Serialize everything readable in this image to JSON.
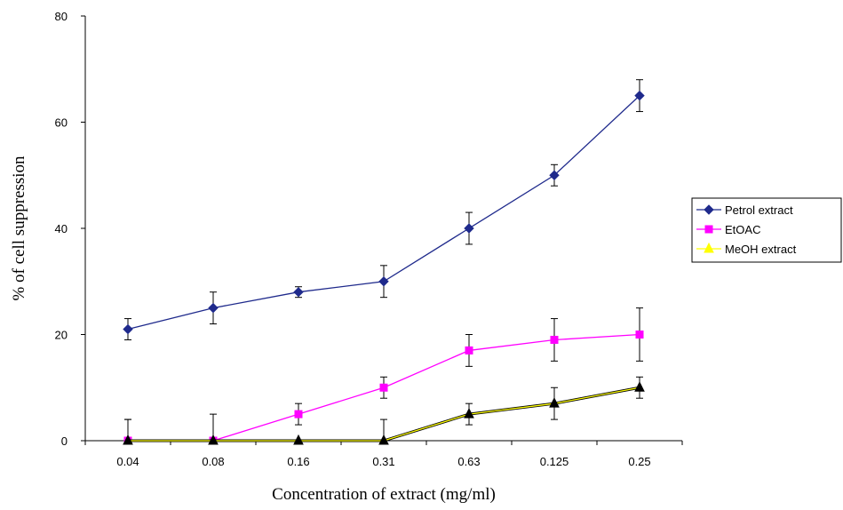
{
  "chart_data": {
    "type": "line",
    "xlabel": "Concentration of extract (mg/ml)",
    "ylabel": "% of cell suppression",
    "categories": [
      "0.04",
      "0.08",
      "0.16",
      "0.31",
      "0.63",
      "0.125",
      "0.25"
    ],
    "ylim": [
      0,
      80
    ],
    "yticks": [
      0,
      20,
      40,
      60,
      80
    ],
    "grid": false,
    "legend_position": "right",
    "series": [
      {
        "name": "Petrol extract",
        "color": "#1f2a8c",
        "marker": "diamond",
        "values": [
          21,
          25,
          28,
          30,
          40,
          50,
          65
        ],
        "errors": [
          2,
          3,
          1,
          3,
          3,
          2,
          3
        ]
      },
      {
        "name": "EtOAC",
        "color": "#ff00ff",
        "marker": "square",
        "values": [
          0,
          0,
          5,
          10,
          17,
          19,
          20
        ],
        "errors": [
          4,
          5,
          2,
          2,
          3,
          4,
          5
        ]
      },
      {
        "name": "MeOH extract",
        "color": "#ffff00",
        "marker": "triangle",
        "values": [
          0,
          0,
          0,
          0,
          5,
          7,
          10
        ],
        "errors": [
          4,
          0,
          0,
          4,
          2,
          3,
          2
        ]
      }
    ]
  }
}
